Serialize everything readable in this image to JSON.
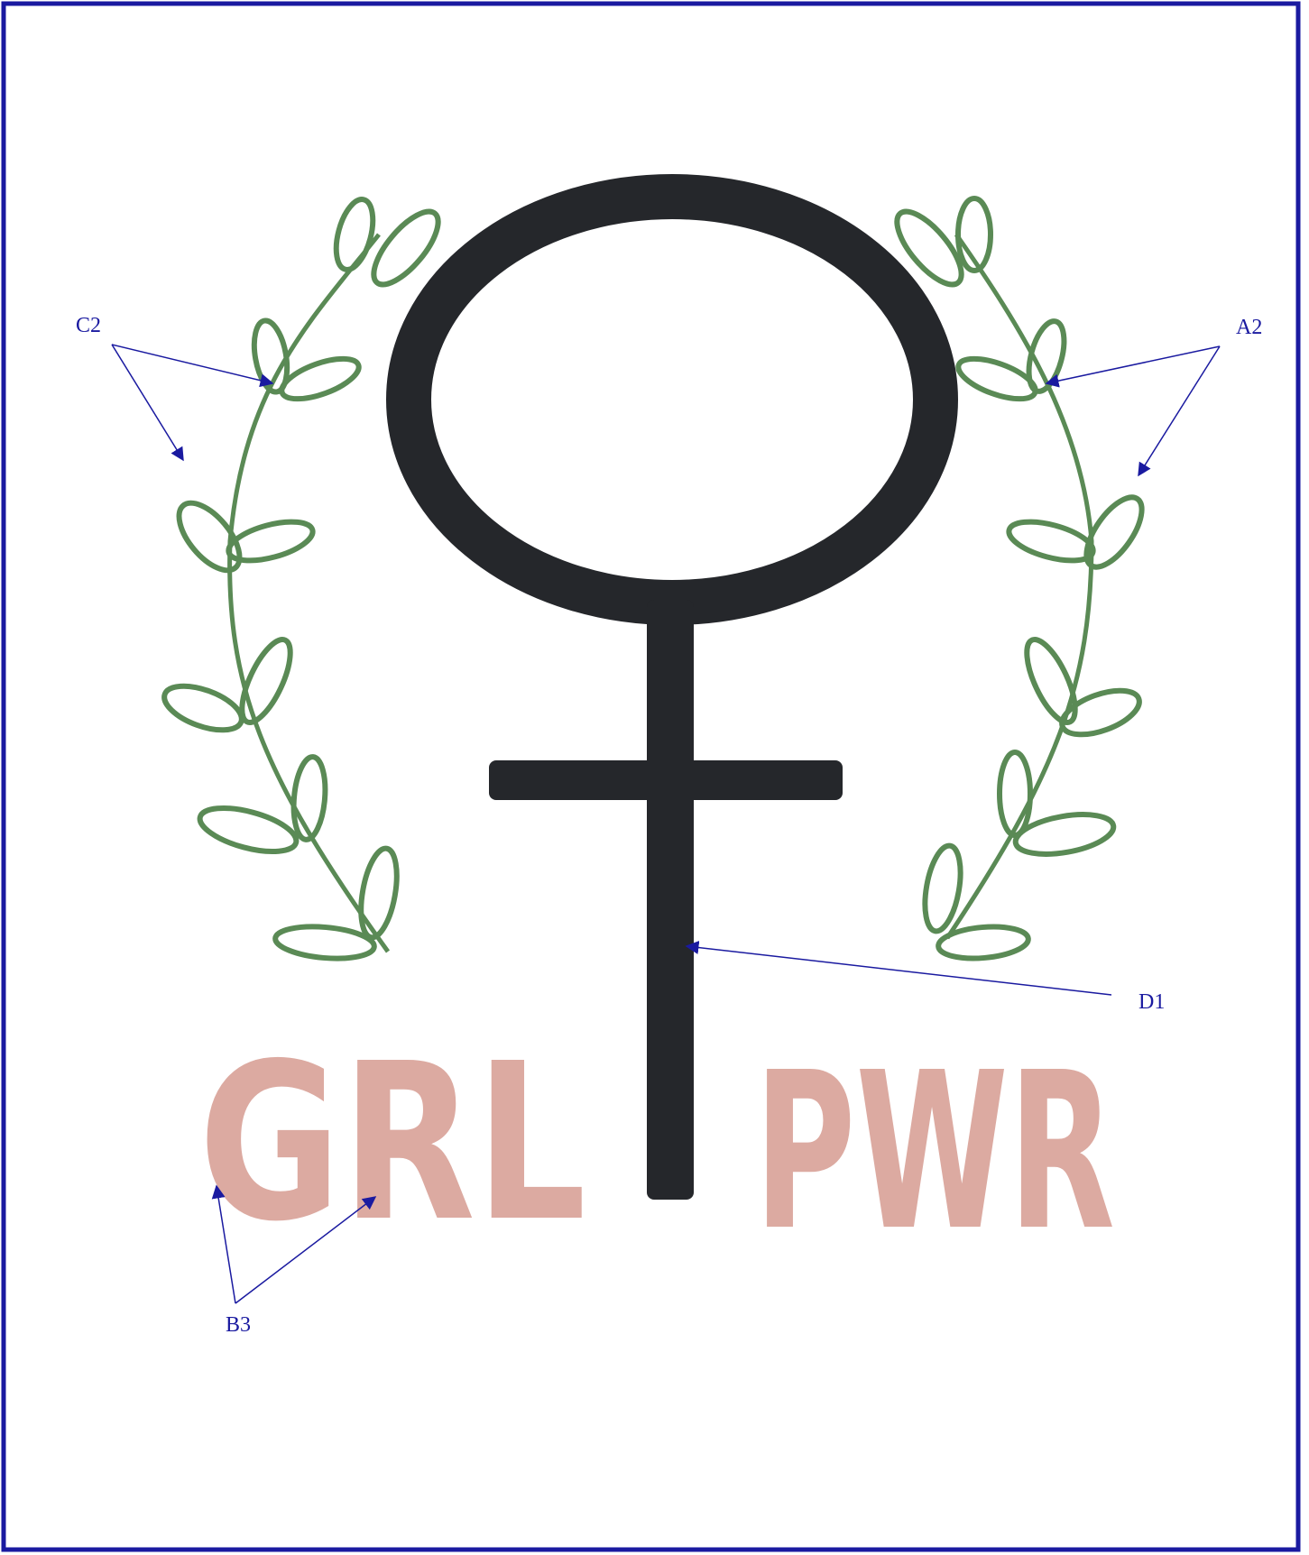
{
  "artwork": {
    "left_text": "GRL",
    "right_text": "PWR"
  },
  "callouts": [
    {
      "label": "C2"
    },
    {
      "label": "A2"
    },
    {
      "label": "D1"
    },
    {
      "label": "B3"
    }
  ]
}
